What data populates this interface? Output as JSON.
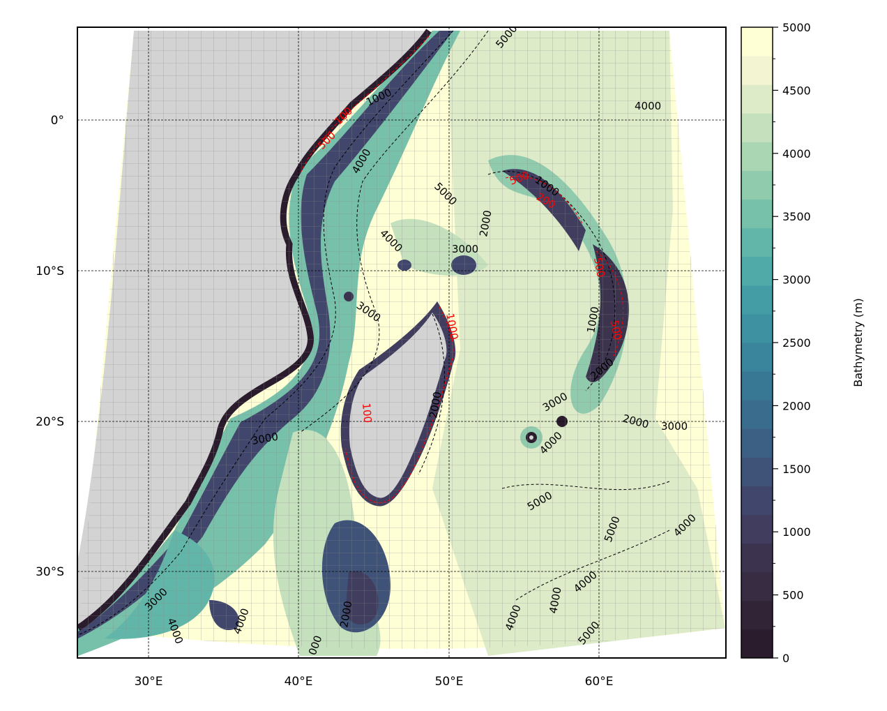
{
  "map": {
    "type": "bathymetry contour map",
    "region": "Western Indian Ocean / Madagascar / Mascarene Plateau",
    "lat_ticks": [
      "0°",
      "10°S",
      "20°S",
      "30°S"
    ],
    "lon_ticks": [
      "30°E",
      "40°E",
      "50°E",
      "60°E"
    ],
    "land_color": "#d3d3d3",
    "grid_color": "#7f7f7f",
    "contour_labels": [
      {
        "text": "5000",
        "color": "black"
      },
      {
        "text": "4000",
        "color": "black"
      },
      {
        "text": "1000",
        "color": "black"
      },
      {
        "text": "100",
        "color": "red"
      },
      {
        "text": "500",
        "color": "red"
      },
      {
        "text": "4000",
        "color": "black"
      },
      {
        "text": "5000",
        "color": "black"
      },
      {
        "text": "500",
        "color": "red"
      },
      {
        "text": "1000",
        "color": "black"
      },
      {
        "text": "200",
        "color": "red"
      },
      {
        "text": "2000",
        "color": "black"
      },
      {
        "text": "4000",
        "color": "black"
      },
      {
        "text": "3000",
        "color": "black"
      },
      {
        "text": "3000",
        "color": "black"
      },
      {
        "text": "500",
        "color": "red"
      },
      {
        "text": "1000",
        "color": "black"
      },
      {
        "text": "500",
        "color": "red"
      },
      {
        "text": "1000",
        "color": "black"
      },
      {
        "text": "2000",
        "color": "black"
      },
      {
        "text": "100",
        "color": "red"
      },
      {
        "text": "2000",
        "color": "black"
      },
      {
        "text": "3000",
        "color": "black"
      },
      {
        "text": "3000",
        "color": "black"
      },
      {
        "text": "4000",
        "color": "black"
      },
      {
        "text": "2000",
        "color": "black"
      },
      {
        "text": "3000",
        "color": "black"
      },
      {
        "text": "5000",
        "color": "black"
      },
      {
        "text": "5000",
        "color": "black"
      },
      {
        "text": "4000",
        "color": "black"
      },
      {
        "text": "3000",
        "color": "black"
      },
      {
        "text": "4000",
        "color": "black"
      },
      {
        "text": "4000",
        "color": "black"
      },
      {
        "text": "2000",
        "color": "black"
      },
      {
        "text": "000",
        "color": "black"
      },
      {
        "text": "4000",
        "color": "black"
      },
      {
        "text": "4000",
        "color": "black"
      },
      {
        "text": "4000",
        "color": "black"
      },
      {
        "text": "5000",
        "color": "black"
      }
    ]
  },
  "colorbar": {
    "label": "Bathymetry (m)",
    "ticks": [
      "0",
      "500",
      "1000",
      "1500",
      "2000",
      "2500",
      "3000",
      "3500",
      "4000",
      "4500",
      "5000"
    ],
    "colors": [
      "#2a1c2c",
      "#312436",
      "#372c42",
      "#3c344f",
      "#403d5e",
      "#41476c",
      "#3f5379",
      "#3c5f84",
      "#3a6c8d",
      "#397895",
      "#3a849c",
      "#3d91a0",
      "#449da4",
      "#50aaa7",
      "#61b6a9",
      "#77c1aa",
      "#90cbad",
      "#abd6b4",
      "#c5e0bd",
      "#deebc8",
      "#f3f5d2",
      "#ffffd5"
    ]
  }
}
